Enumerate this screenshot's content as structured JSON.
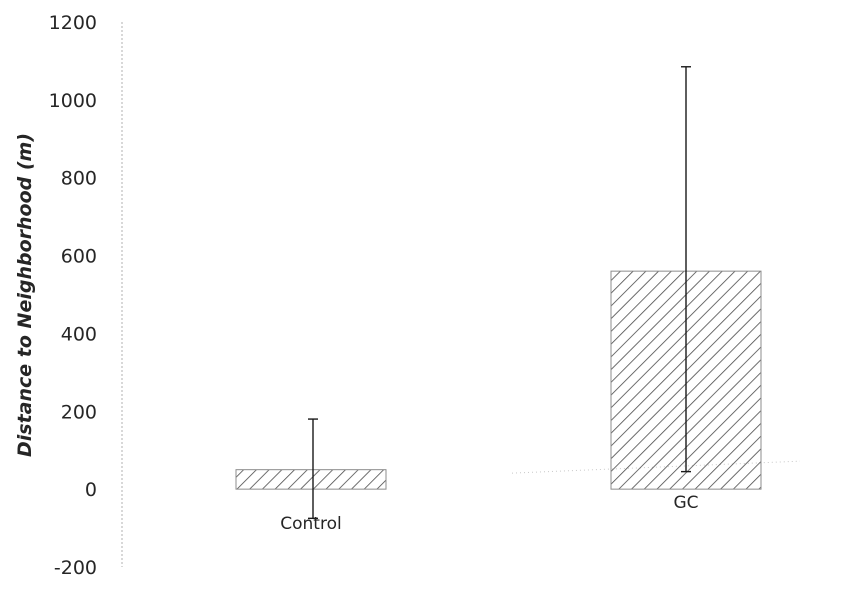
{
  "chart_data": {
    "type": "bar",
    "title": "",
    "xlabel": "",
    "ylabel": "Distance to Neighborhood (m)",
    "ylim": [
      -200,
      1200
    ],
    "yticks": [
      -200,
      0,
      200,
      400,
      600,
      800,
      1000,
      1200
    ],
    "categories": [
      "Control",
      "GC"
    ],
    "values": [
      50,
      560
    ],
    "error_high": [
      180,
      1085
    ],
    "error_low": [
      -75,
      45
    ],
    "grid": false,
    "legend": "none",
    "colors": {
      "bar_outline": "#8c8c8c",
      "hatch": "#4a4a4a",
      "error_bar": "#1a1a1a",
      "axis": "#b0b0b0",
      "text": "#262626"
    }
  }
}
